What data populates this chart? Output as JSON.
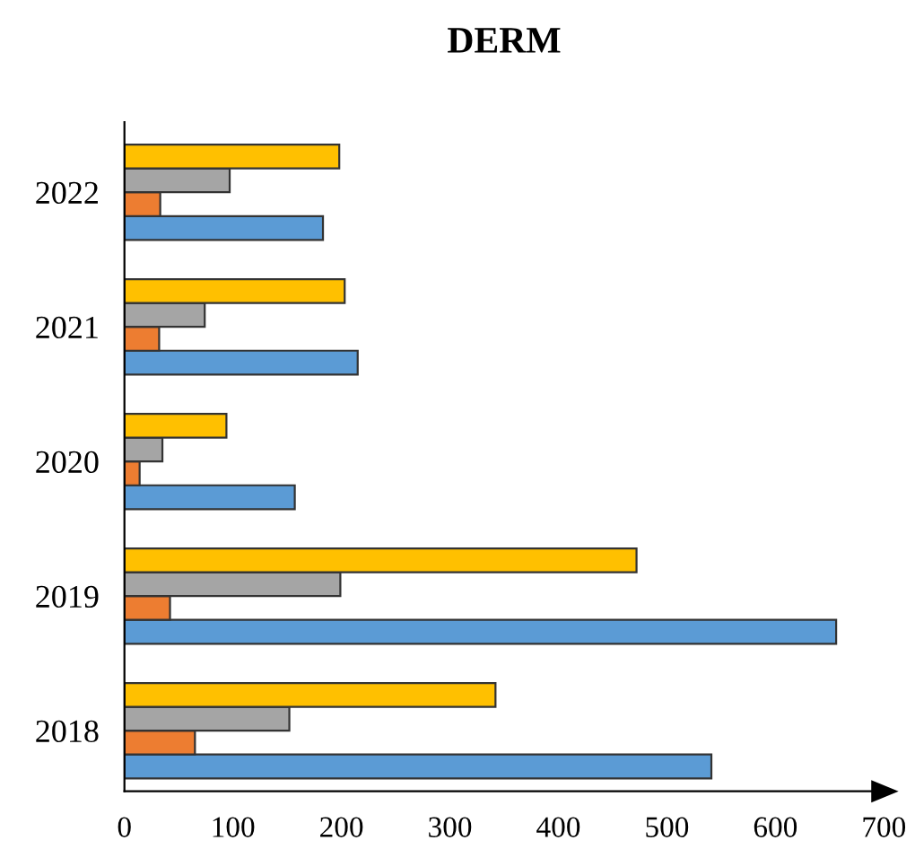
{
  "chart_data": {
    "type": "bar",
    "orientation": "horizontal",
    "title": "DERM",
    "categories": [
      "2022",
      "2021",
      "2020",
      "2019",
      "2018"
    ],
    "series": [
      {
        "color": "#5b9bd5",
        "values": [
          183,
          215,
          157,
          656,
          541
        ]
      },
      {
        "color": "#ed7d31",
        "values": [
          33,
          32,
          14,
          42,
          65
        ]
      },
      {
        "color": "#a5a5a5",
        "values": [
          97,
          74,
          35,
          199,
          152
        ]
      },
      {
        "color": "#ffc000",
        "values": [
          198,
          203,
          94,
          472,
          342
        ]
      }
    ],
    "xlim": [
      0,
      700
    ],
    "xticks": [
      0,
      100,
      200,
      300,
      400,
      500,
      600,
      700
    ],
    "grid": false,
    "legend": false
  }
}
